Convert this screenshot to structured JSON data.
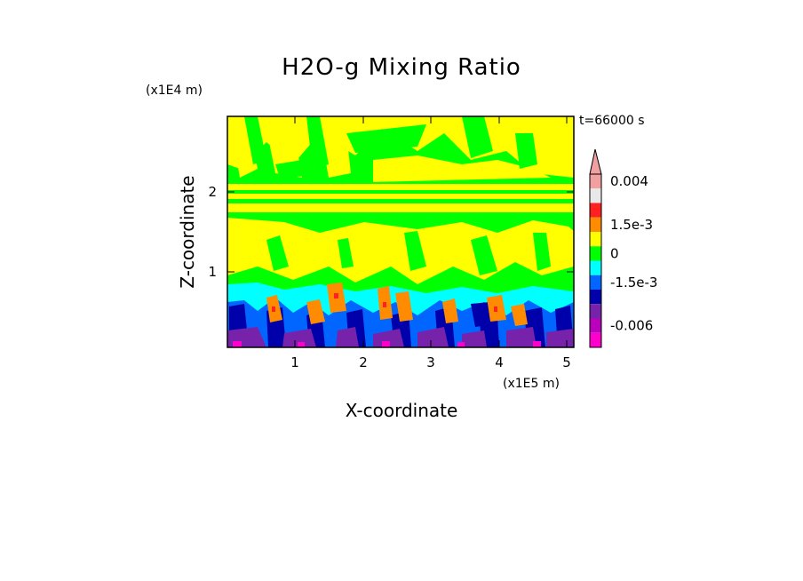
{
  "chart_data": {
    "type": "heatmap",
    "title": "H2O-g Mixing Ratio",
    "xlabel": "X-coordinate",
    "ylabel": "Z-coordinate",
    "x_scale_label": "(x1E5 m)",
    "y_scale_label": "(x1E4 m)",
    "time_label": "t=66000 s",
    "xlim": [
      0,
      5.12
    ],
    "ylim": [
      0,
      2.9
    ],
    "x_ticks": [
      1,
      2,
      3,
      4,
      5
    ],
    "y_ticks": [
      1,
      2
    ],
    "colorbar": {
      "levels": [
        {
          "color": "#f0a0a0",
          "label": "0.004"
        },
        {
          "color": "#e8e8e8",
          "label": ""
        },
        {
          "color": "#ff2020",
          "label": ""
        },
        {
          "color": "#ff8c00",
          "label": "1.5e-3"
        },
        {
          "color": "#ffff00",
          "label": ""
        },
        {
          "color": "#00ff00",
          "label": "0"
        },
        {
          "color": "#00ffff",
          "label": ""
        },
        {
          "color": "#0066ff",
          "label": "-1.5e-3"
        },
        {
          "color": "#0000aa",
          "label": ""
        },
        {
          "color": "#7722aa",
          "label": ""
        },
        {
          "color": "#bb00bb",
          "label": "-0.006"
        },
        {
          "color": "#ff00cc",
          "label": ""
        }
      ],
      "extend_top_color": "#f0a0a0"
    }
  }
}
